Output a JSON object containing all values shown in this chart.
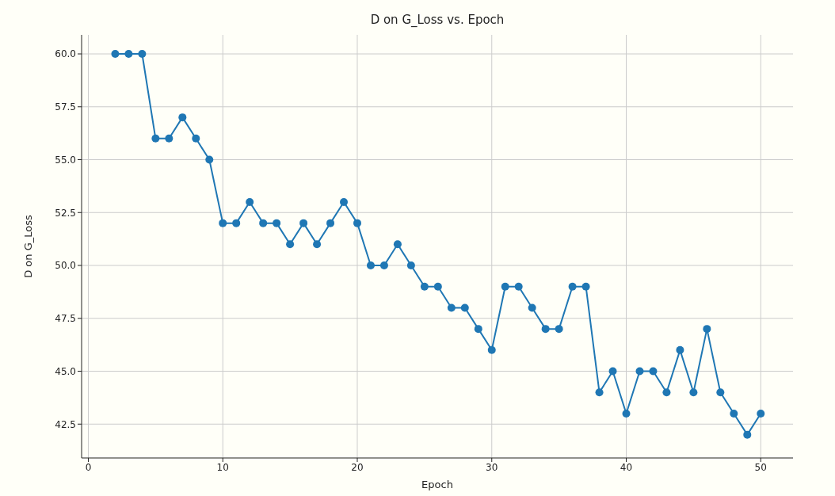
{
  "chart_data": {
    "type": "line",
    "title": "D on G_Loss vs. Epoch",
    "xlabel": "Epoch",
    "ylabel": "D on G_Loss",
    "x": [
      2,
      3,
      4,
      5,
      6,
      7,
      8,
      9,
      10,
      11,
      12,
      13,
      14,
      15,
      16,
      17,
      18,
      19,
      20,
      21,
      22,
      23,
      24,
      25,
      26,
      27,
      28,
      29,
      30,
      31,
      32,
      33,
      34,
      35,
      36,
      37,
      38,
      39,
      40,
      41,
      42,
      43,
      44,
      45,
      46,
      47,
      48,
      49,
      50
    ],
    "series": [
      {
        "color": "#1f77b4",
        "values": [
          60,
          60,
          60,
          56,
          56,
          57,
          56,
          55,
          52,
          52,
          53,
          52,
          52,
          51,
          52,
          51,
          52,
          53,
          52,
          50,
          50,
          51,
          50,
          49,
          49,
          48,
          48,
          47,
          46,
          49,
          49,
          48,
          47,
          47,
          49,
          49,
          44,
          45,
          43,
          45,
          45,
          44,
          46,
          44,
          47,
          44,
          43,
          42,
          43
        ]
      }
    ],
    "xlim": [
      -0.5,
      52.4
    ],
    "xticks": [
      0,
      10,
      20,
      30,
      40,
      50
    ],
    "ylim": [
      40.9,
      60.9
    ],
    "yticks": [
      {
        "value": 42.5,
        "label": "42.5"
      },
      {
        "value": 45,
        "label": "45.0"
      },
      {
        "value": 47.5,
        "label": "47.5"
      },
      {
        "value": 50,
        "label": "50.0"
      },
      {
        "value": 52.5,
        "label": "52.5"
      },
      {
        "value": 55,
        "label": "55.0"
      },
      {
        "value": 57.5,
        "label": "57.5"
      },
      {
        "value": 60,
        "label": "60.0"
      }
    ],
    "grid": true,
    "marker": "circle",
    "line_style": "solid",
    "legend": false
  }
}
